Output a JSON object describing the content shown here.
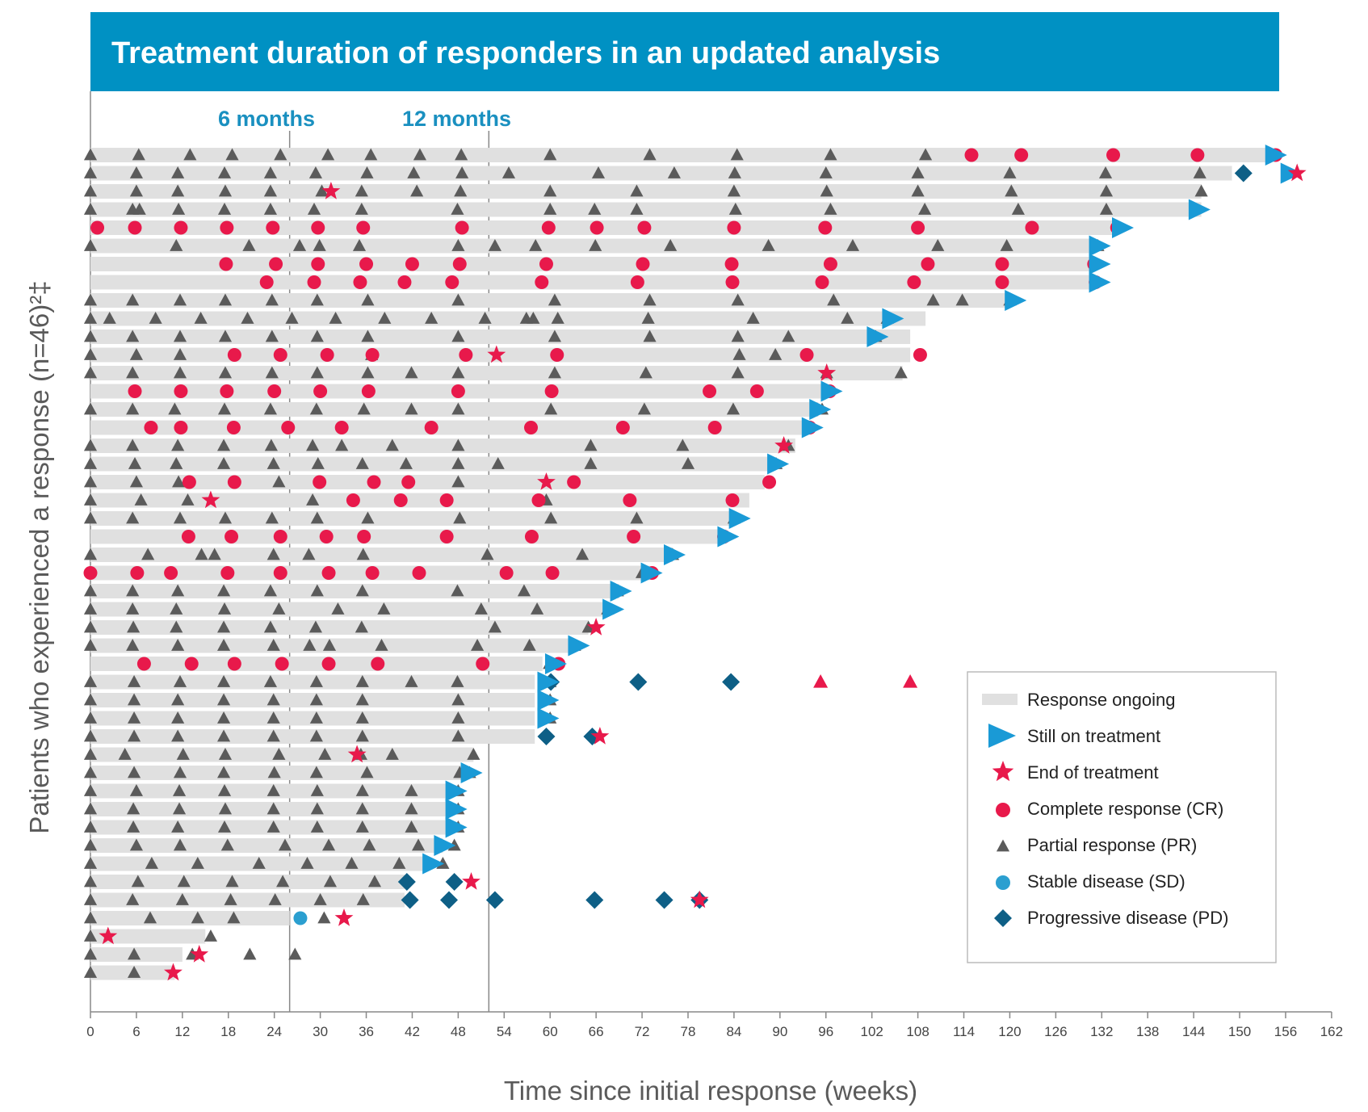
{
  "colors": {
    "title_bg": "#0091c3",
    "title_fg": "#ffffff",
    "bar": "#e0e0e0",
    "cr": "#e8194b",
    "pr": "#5b5b5b",
    "sd": "#2b9fd0",
    "pd": "#0e5f86",
    "still_on": "#1a9ad6",
    "end_tx": "#e8194b",
    "month_label": "#1a90c0",
    "axis": "#888888"
  },
  "chart_data": {
    "type": "swimmer",
    "title": "Treatment duration of responders in an updated analysis",
    "xlabel": "Time since initial response (weeks)",
    "ylabel": "Patients who experienced a response (n=46)²‡",
    "xlim": [
      0,
      162
    ],
    "xticks": [
      0,
      6,
      12,
      18,
      24,
      30,
      36,
      42,
      48,
      54,
      60,
      66,
      72,
      78,
      84,
      90,
      96,
      102,
      108,
      114,
      120,
      126,
      132,
      138,
      144,
      150,
      156,
      162
    ],
    "reference_lines": [
      {
        "week": 26,
        "label": "6 months"
      },
      {
        "week": 52,
        "label": "12 months"
      }
    ],
    "legend": {
      "position": "bottom-right",
      "entries": [
        {
          "key": "ongoing",
          "label": "Response ongoing"
        },
        {
          "key": "still",
          "label": "Still on treatment"
        },
        {
          "key": "end",
          "label": "End of treatment"
        },
        {
          "key": "cr",
          "label": "Complete response (CR)"
        },
        {
          "key": "pr",
          "label": "Partial response (PR)"
        },
        {
          "key": "sd",
          "label": "Stable disease (SD)"
        },
        {
          "key": "pd",
          "label": "Progressive disease (PD)"
        }
      ]
    },
    "patients": [
      {
        "bar": 154,
        "still": 154.5,
        "pr": [
          0,
          6.3,
          13,
          18.5,
          24.8,
          31,
          36.6,
          43,
          48.4,
          60,
          73,
          84.4,
          96.6,
          109
        ],
        "cr": [
          115,
          121.5,
          133.5,
          144.5,
          154.7
        ]
      },
      {
        "bar": 149,
        "still": 156.5,
        "end": [
          157.5
        ],
        "pd": [
          150.5
        ],
        "pr": [
          0,
          6,
          11.4,
          17.5,
          23.5,
          29.4,
          36.1,
          42.2,
          48.5,
          54.6,
          66.3,
          76.2,
          84.1,
          96,
          108,
          120,
          132.5,
          144.8
        ]
      },
      {
        "bar": 145,
        "end": [
          31.4
        ],
        "pr": [
          0,
          6,
          11.4,
          17.6,
          23.5,
          30.2,
          35.4,
          42.6,
          48.3,
          60,
          71.3,
          84,
          96.1,
          108,
          120.2,
          132.6,
          145
        ]
      },
      {
        "bar": 145,
        "still": 144.5,
        "pr": [
          0,
          5.5,
          6.4,
          11.5,
          17.5,
          23.5,
          29.2,
          35.4,
          47.9,
          60,
          65.8,
          71.3,
          84.2,
          96.6,
          108.9,
          121.1,
          132.6
        ]
      },
      {
        "bar": 134,
        "still": 134.5,
        "cr": [
          0.9,
          5.8,
          11.8,
          17.8,
          23.8,
          29.7,
          35.6,
          48.5,
          59.8,
          66.1,
          72.3,
          84,
          95.9,
          108,
          122.9,
          134
        ]
      },
      {
        "bar": 131,
        "still": 131.5,
        "pr": [
          0,
          11.2,
          20.7,
          27.3,
          29.9,
          35.1,
          48,
          52.8,
          58.1,
          65.9,
          75.7,
          88.5,
          99.5,
          110.6,
          119.6,
          131.5
        ]
      },
      {
        "bar": 131,
        "still": 131.5,
        "cr": [
          17.7,
          24.2,
          29.7,
          36,
          42,
          48.2,
          59.5,
          72.1,
          83.7,
          96.6,
          109.3,
          119,
          131
        ]
      },
      {
        "bar": 131,
        "still": 131.5,
        "cr": [
          23,
          29.2,
          35.2,
          41,
          47.2,
          58.9,
          71.4,
          83.8,
          95.5,
          107.5,
          119,
          131.2
        ]
      },
      {
        "bar": 120,
        "still": 120.5,
        "pr": [
          0,
          5.5,
          11.7,
          17.6,
          23.7,
          29.6,
          36.2,
          48,
          60.6,
          73,
          84.5,
          97,
          110,
          113.8,
          120
        ]
      },
      {
        "bar": 109,
        "still": 104.5,
        "pr": [
          0,
          2.5,
          8.5,
          14.4,
          20.5,
          26.3,
          32,
          38.4,
          44.5,
          51.5,
          56.9,
          57.8,
          61,
          72.8,
          86.5,
          98.8,
          104
        ]
      },
      {
        "bar": 107,
        "still": 102.5,
        "pr": [
          0,
          5.5,
          11.7,
          17.6,
          23.7,
          29.6,
          36.2,
          48,
          60.6,
          73,
          84.5,
          91.1,
          102.5
        ]
      },
      {
        "bar": 107,
        "end": [
          53
        ],
        "cr": [
          18.8,
          24.8,
          30.9,
          36.8,
          49,
          60.9,
          93.5,
          108.3
        ],
        "pr": [
          0,
          6,
          11.7,
          36.7,
          84.7,
          89.4
        ]
      },
      {
        "bar": 106,
        "end": [
          96.1
        ],
        "pr": [
          0,
          5.5,
          11.7,
          17.6,
          23.7,
          29.6,
          36.2,
          41.9,
          48,
          60.6,
          72.5,
          84.5,
          96.1,
          105.8
        ]
      },
      {
        "bar": 96,
        "still": 96.5,
        "cr": [
          5.8,
          11.8,
          17.8,
          24,
          30,
          36.3,
          48,
          60.2,
          80.8,
          87,
          96.5
        ]
      },
      {
        "bar": 95,
        "still": 95,
        "pr": [
          0,
          5.5,
          11,
          17.5,
          23.5,
          29.5,
          35.7,
          41.9,
          48,
          60.1,
          72.3,
          83.9,
          95.5
        ]
      },
      {
        "bar": 94,
        "still": 94,
        "cr": [
          7.9,
          11.8,
          18.7,
          25.8,
          32.8,
          44.5,
          57.5,
          69.5,
          81.5,
          93.9
        ]
      },
      {
        "bar": 92,
        "end": [
          90.5
        ],
        "pr": [
          0,
          5.5,
          11.4,
          17.4,
          23.6,
          29,
          32.8,
          39.4,
          48,
          65.3,
          77.3,
          91.1
        ]
      },
      {
        "bar": 89,
        "still": 89.5,
        "pr": [
          0,
          5.8,
          11.2,
          17.4,
          23.9,
          29.7,
          35.5,
          41.2,
          48,
          53.2,
          65.3,
          78,
          89.5
        ]
      },
      {
        "bar": 88,
        "end": [
          59.5
        ],
        "cr": [
          12.9,
          18.8,
          29.9,
          37,
          41.5,
          63.1,
          88.6
        ],
        "pr": [
          0,
          6,
          11.5,
          24.6,
          48
        ]
      },
      {
        "bar": 86,
        "end": [
          15.7
        ],
        "cr": [
          34.3,
          40.5,
          46.5,
          58.5,
          70.4,
          83.8
        ],
        "pr": [
          0,
          6.6,
          12.7,
          29,
          59.5
        ]
      },
      {
        "bar": 84,
        "still": 84.5,
        "pr": [
          0,
          5.5,
          11.7,
          17.6,
          23.7,
          29.6,
          36.2,
          48.2,
          60.1,
          71.3,
          84
        ]
      },
      {
        "bar": 83,
        "still": 83,
        "cr": [
          12.8,
          18.4,
          24.8,
          30.8,
          35.7,
          46.5,
          57.6,
          70.9,
          82.7
        ]
      },
      {
        "bar": 76,
        "still": 76,
        "pr": [
          0,
          7.5,
          14.5,
          16.2,
          23.9,
          28.5,
          35.6,
          51.8,
          64.2,
          76
        ]
      },
      {
        "bar": 73,
        "still": 73,
        "cr": [
          0,
          6.1,
          10.5,
          17.9,
          24.8,
          31.1,
          36.8,
          42.9,
          54.3,
          60.3,
          73.3
        ],
        "pr": [
          72
        ]
      },
      {
        "bar": 69,
        "still": 69,
        "pr": [
          0,
          5.5,
          11.4,
          17.4,
          23.5,
          29.6,
          35.5,
          47.9,
          56.6,
          68.8
        ]
      },
      {
        "bar": 67,
        "still": 68,
        "pr": [
          0,
          5.5,
          11.2,
          17.5,
          24.6,
          32.3,
          38.3,
          51,
          58.3,
          67.5
        ]
      },
      {
        "bar": 65,
        "end": [
          66
        ],
        "pr": [
          0,
          5.6,
          11.2,
          17.4,
          23.5,
          29.4,
          35.4,
          52.8,
          65
        ]
      },
      {
        "bar": 63,
        "still": 63.5,
        "pr": [
          0,
          5.5,
          11.4,
          17.4,
          23.9,
          28.6,
          31.2,
          38,
          50.5,
          57.3,
          63.2
        ]
      },
      {
        "bar": 59,
        "still": 60.5,
        "cr": [
          7,
          13.2,
          18.8,
          25,
          31.1,
          37.5,
          51.2,
          61.1
        ],
        "pr": [
          59.9
        ]
      },
      {
        "bar": 58,
        "still": 59.5,
        "pd": [
          60.1,
          71.5,
          83.6
        ],
        "prcol": [
          95.3,
          107
        ],
        "pr": [
          0,
          5.7,
          11.7,
          17.4,
          23.5,
          29.5,
          35.5,
          41.9,
          47.9,
          60
        ]
      },
      {
        "bar": 58,
        "still": 59.5,
        "pr": [
          0,
          5.7,
          11.4,
          17.4,
          23.9,
          29.5,
          35.5,
          48,
          60
        ]
      },
      {
        "bar": 58,
        "still": 59.5,
        "pr": [
          0,
          5.7,
          11.4,
          17.4,
          23.9,
          29.5,
          35.5,
          48,
          60
        ]
      },
      {
        "bar": 58,
        "end": [
          66.5
        ],
        "pd": [
          59.5,
          65.5
        ],
        "pr": [
          0,
          5.7,
          11.4,
          17.4,
          23.9,
          29.5,
          35.5,
          48
        ]
      },
      {
        "bar": 50,
        "end": [
          34.8
        ],
        "pr": [
          0,
          4.5,
          12.1,
          17.6,
          24.6,
          30.6,
          35.3,
          39.4,
          50
        ]
      },
      {
        "bar": 49,
        "still": 49.5,
        "pr": [
          0,
          5.7,
          11.7,
          17.4,
          24,
          29.5,
          36.1,
          48.2,
          49.5
        ]
      },
      {
        "bar": 47,
        "still": 47.5,
        "pr": [
          0,
          6,
          11.6,
          17.5,
          23.9,
          29.6,
          35.5,
          41.9,
          48
        ]
      },
      {
        "bar": 47,
        "still": 47.5,
        "pr": [
          0,
          5.6,
          11.6,
          17.6,
          23.9,
          29.6,
          35.5,
          41.9,
          48
        ]
      },
      {
        "bar": 47,
        "still": 47.5,
        "pr": [
          0,
          5.6,
          11.4,
          17.5,
          23.9,
          29.6,
          35.5,
          41.9,
          48
        ]
      },
      {
        "bar": 46,
        "still": 46,
        "pr": [
          0,
          6,
          11.7,
          17.9,
          25.4,
          31.1,
          36.4,
          42.8,
          47.5
        ]
      },
      {
        "bar": 44,
        "still": 44.5,
        "pr": [
          0,
          8,
          14,
          22,
          28.3,
          34.1,
          40.3,
          46
        ]
      },
      {
        "bar": 41,
        "end": [
          49.7
        ],
        "pd": [
          41.3,
          47.5
        ],
        "pr": [
          0,
          6.2,
          12.2,
          18.5,
          25.1,
          31.3,
          37.1
        ]
      },
      {
        "bar": 41,
        "end": [
          79.5
        ],
        "pd": [
          41.7,
          46.8,
          52.8,
          65.8,
          74.9,
          79.5
        ],
        "pr": [
          0,
          5.5,
          12,
          18.3,
          24.1,
          30,
          35.6
        ]
      },
      {
        "bar": 26,
        "end": [
          33.1
        ],
        "sd": [
          27.4
        ],
        "pr": [
          0,
          7.8,
          14,
          18.7,
          30.5
        ]
      },
      {
        "bar": 15,
        "end": [
          2.3
        ],
        "pr": [
          0,
          15.7
        ]
      },
      {
        "bar": 12,
        "end": [
          14.2
        ],
        "pr": [
          0,
          5.7,
          13.3,
          20.8,
          26.7
        ]
      },
      {
        "bar": 11,
        "end": [
          10.8
        ],
        "pr": [
          0,
          5.7
        ]
      }
    ]
  }
}
